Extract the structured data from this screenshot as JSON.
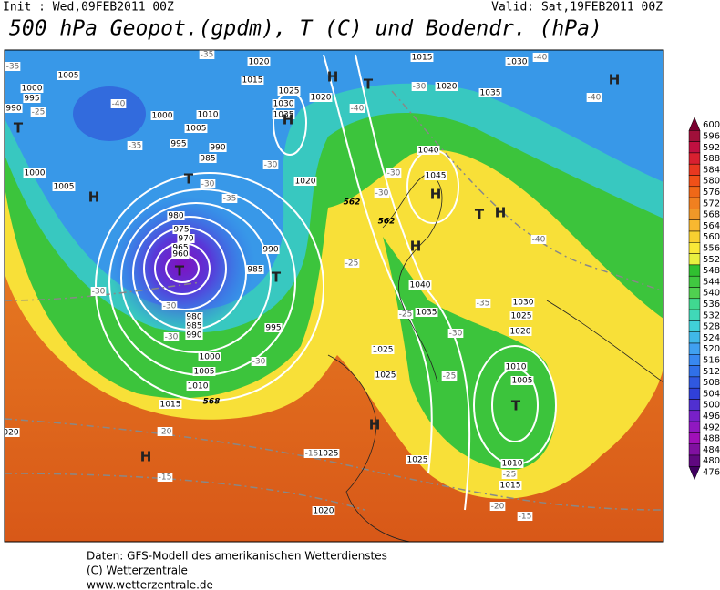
{
  "header": {
    "init": "Init : Wed,09FEB2011 00Z",
    "valid": "Valid: Sat,19FEB2011 00Z",
    "title": "500 hPa Geopot.(gpdm), T (C) und Bodendr. (hPa)"
  },
  "colorbar": {
    "labels": [
      "600",
      "596",
      "592",
      "588",
      "584",
      "580",
      "576",
      "572",
      "568",
      "564",
      "560",
      "556",
      "552",
      "548",
      "544",
      "540",
      "536",
      "532",
      "528",
      "524",
      "520",
      "516",
      "512",
      "508",
      "504",
      "500",
      "496",
      "492",
      "488",
      "484",
      "480",
      "476"
    ],
    "colors": [
      "#7a0030",
      "#a0103a",
      "#c01040",
      "#d82030",
      "#e83820",
      "#f05018",
      "#f06818",
      "#f08020",
      "#f09828",
      "#f8b830",
      "#f8d030",
      "#f8e838",
      "#e8f040",
      "#30c030",
      "#40c840",
      "#50d050",
      "#40d890",
      "#40d8b8",
      "#40d0d8",
      "#40b8e8",
      "#40a0f0",
      "#3888f0",
      "#3070e8",
      "#3058e0",
      "#3040d8",
      "#5030d0",
      "#7820c8",
      "#9018c0",
      "#a010b8",
      "#8010a0",
      "#600880",
      "#400060"
    ]
  },
  "map": {
    "isobars": [
      "1005",
      "1000",
      "995",
      "990",
      "1000",
      "1005",
      "1010",
      "1015",
      "1020",
      "1025",
      "1030",
      "1035",
      "1020",
      "1015",
      "1030",
      "1020",
      "1035",
      "995",
      "990",
      "985",
      "1000",
      "1005",
      "1020",
      "1040",
      "1045",
      "980",
      "975",
      "970",
      "965",
      "960",
      "985",
      "990",
      "1040",
      "1035",
      "1030",
      "1025",
      "1020",
      "980",
      "985",
      "990",
      "995",
      "1000",
      "1005",
      "1010",
      "1015",
      "1025",
      "1025",
      "1010",
      "1005",
      "1010",
      "1015",
      "1025",
      "1025",
      "1020",
      "020"
    ],
    "centers": [
      "T",
      "H",
      "T",
      "H",
      "H",
      "T",
      "H",
      "H",
      "T",
      "H",
      "H",
      "T",
      "T",
      "H",
      "T",
      "H"
    ],
    "temps": [
      "-35",
      "-25",
      "-40",
      "-35",
      "-35",
      "-30",
      "-35",
      "-30",
      "-30",
      "-30",
      "-30",
      "-40",
      "-40",
      "-40",
      "-40",
      "-25",
      "-30",
      "-30",
      "-30",
      "-30",
      "-35",
      "-25",
      "-30",
      "-25",
      "-20",
      "-15",
      "-15",
      "-25",
      "-20",
      "-15"
    ],
    "heights": [
      "562",
      "562",
      "568"
    ]
  },
  "footer": {
    "line1": "Daten: GFS-Modell des amerikanischen Wetterdienstes",
    "line2": "(C) Wetterzentrale",
    "line3": "www.wetterzentrale.de"
  }
}
